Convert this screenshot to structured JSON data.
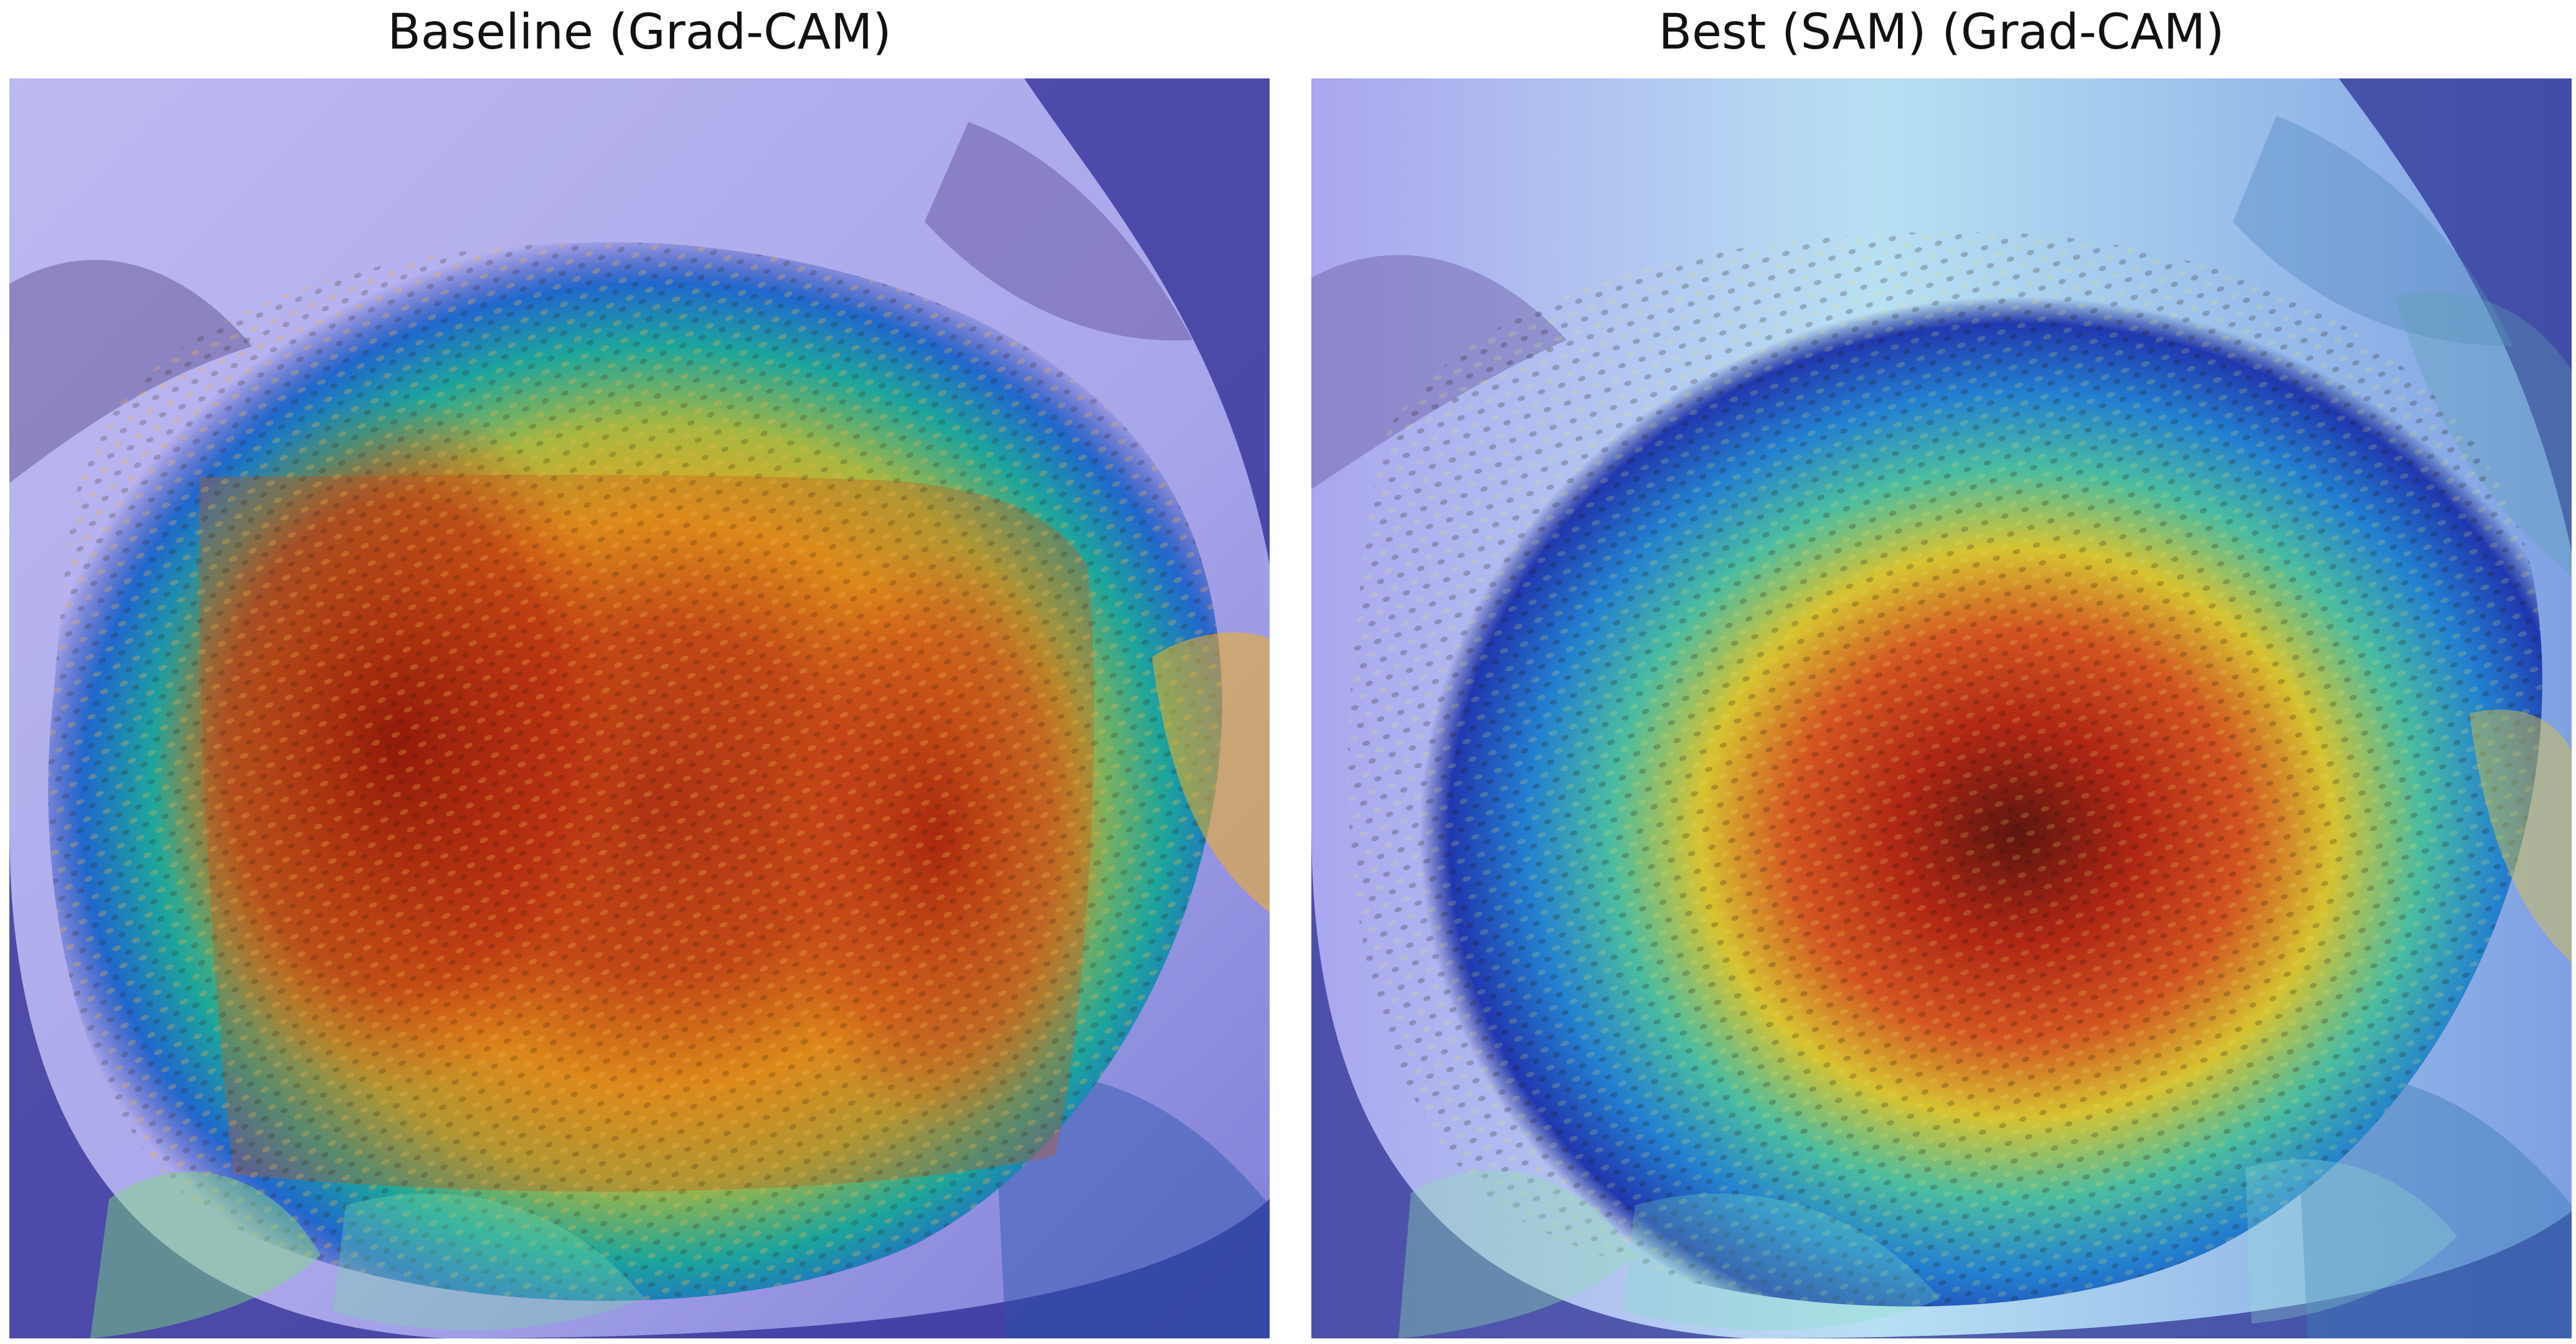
{
  "panels": [
    {
      "title": "Baseline (Grad-CAM)",
      "image": "sunflower-head-gradcam-overlay",
      "colormap": "jet",
      "focus": "broad-square-region"
    },
    {
      "title": "Best (SAM) (Grad-CAM)",
      "image": "sunflower-head-gradcam-overlay",
      "colormap": "jet",
      "focus": "central-concentrated-region"
    }
  ],
  "colors": {
    "sky": "#b8b7f0",
    "background_overlay": "#1d1f93",
    "heat_low": "#123cb8",
    "heat_mid": "#1ca784",
    "heat_high": "#e7c319",
    "heat_peak": "#9f1f0e"
  }
}
